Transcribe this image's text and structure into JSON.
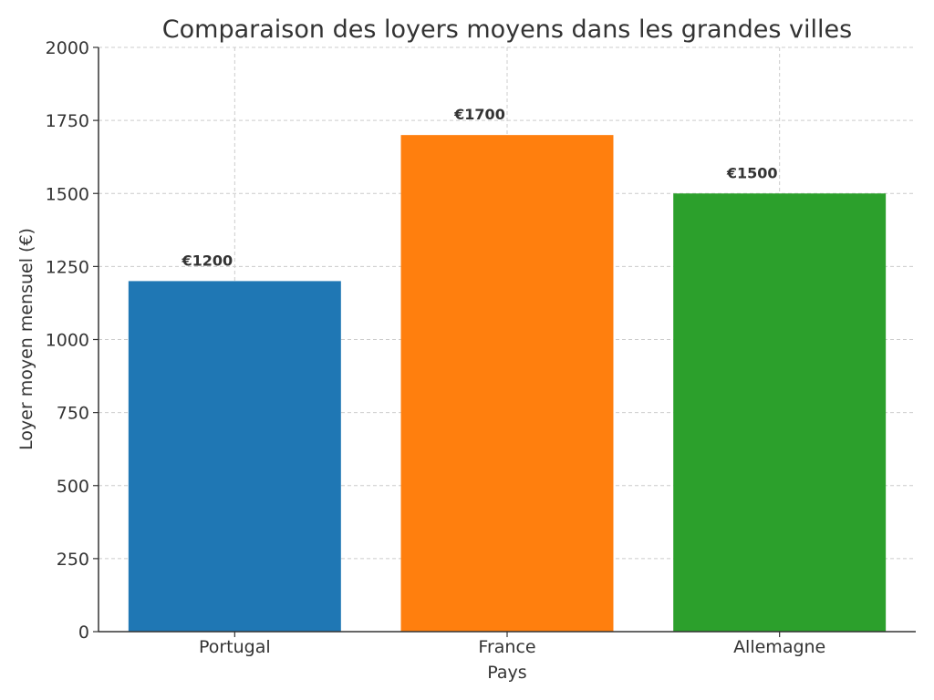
{
  "chart_data": {
    "type": "bar",
    "title": "Comparaison des loyers moyens dans les grandes villes",
    "xlabel": "Pays",
    "ylabel": "Loyer moyen mensuel (€)",
    "categories": [
      "Portugal",
      "France",
      "Allemagne"
    ],
    "values": [
      1200,
      1700,
      1500
    ],
    "value_labels": [
      "€1200",
      "€1700",
      "€1500"
    ],
    "colors": [
      "#1f77b4",
      "#ff7f0e",
      "#2ca02c"
    ],
    "ylim": [
      0,
      2000
    ],
    "yticks": [
      0,
      250,
      500,
      750,
      1000,
      1250,
      1500,
      1750,
      2000
    ],
    "grid": true
  }
}
